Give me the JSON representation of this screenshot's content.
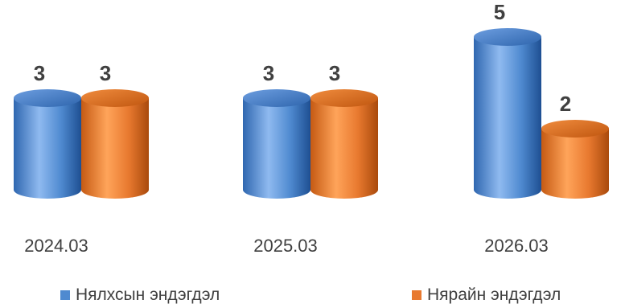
{
  "chart_data": {
    "type": "bar",
    "categories": [
      "2024.03",
      "2025.03",
      "2026.03"
    ],
    "series": [
      {
        "name": "Нялхсын эндэгдэл",
        "values": [
          3,
          3,
          5
        ],
        "color": "#4f8ad0"
      },
      {
        "name": "Нярайн эндэгдэл",
        "values": [
          3,
          3,
          2
        ],
        "color": "#e8792f"
      }
    ],
    "ylim": [
      0,
      5
    ],
    "grid": false,
    "legend": "bottom",
    "style": "3d-cylinder"
  }
}
